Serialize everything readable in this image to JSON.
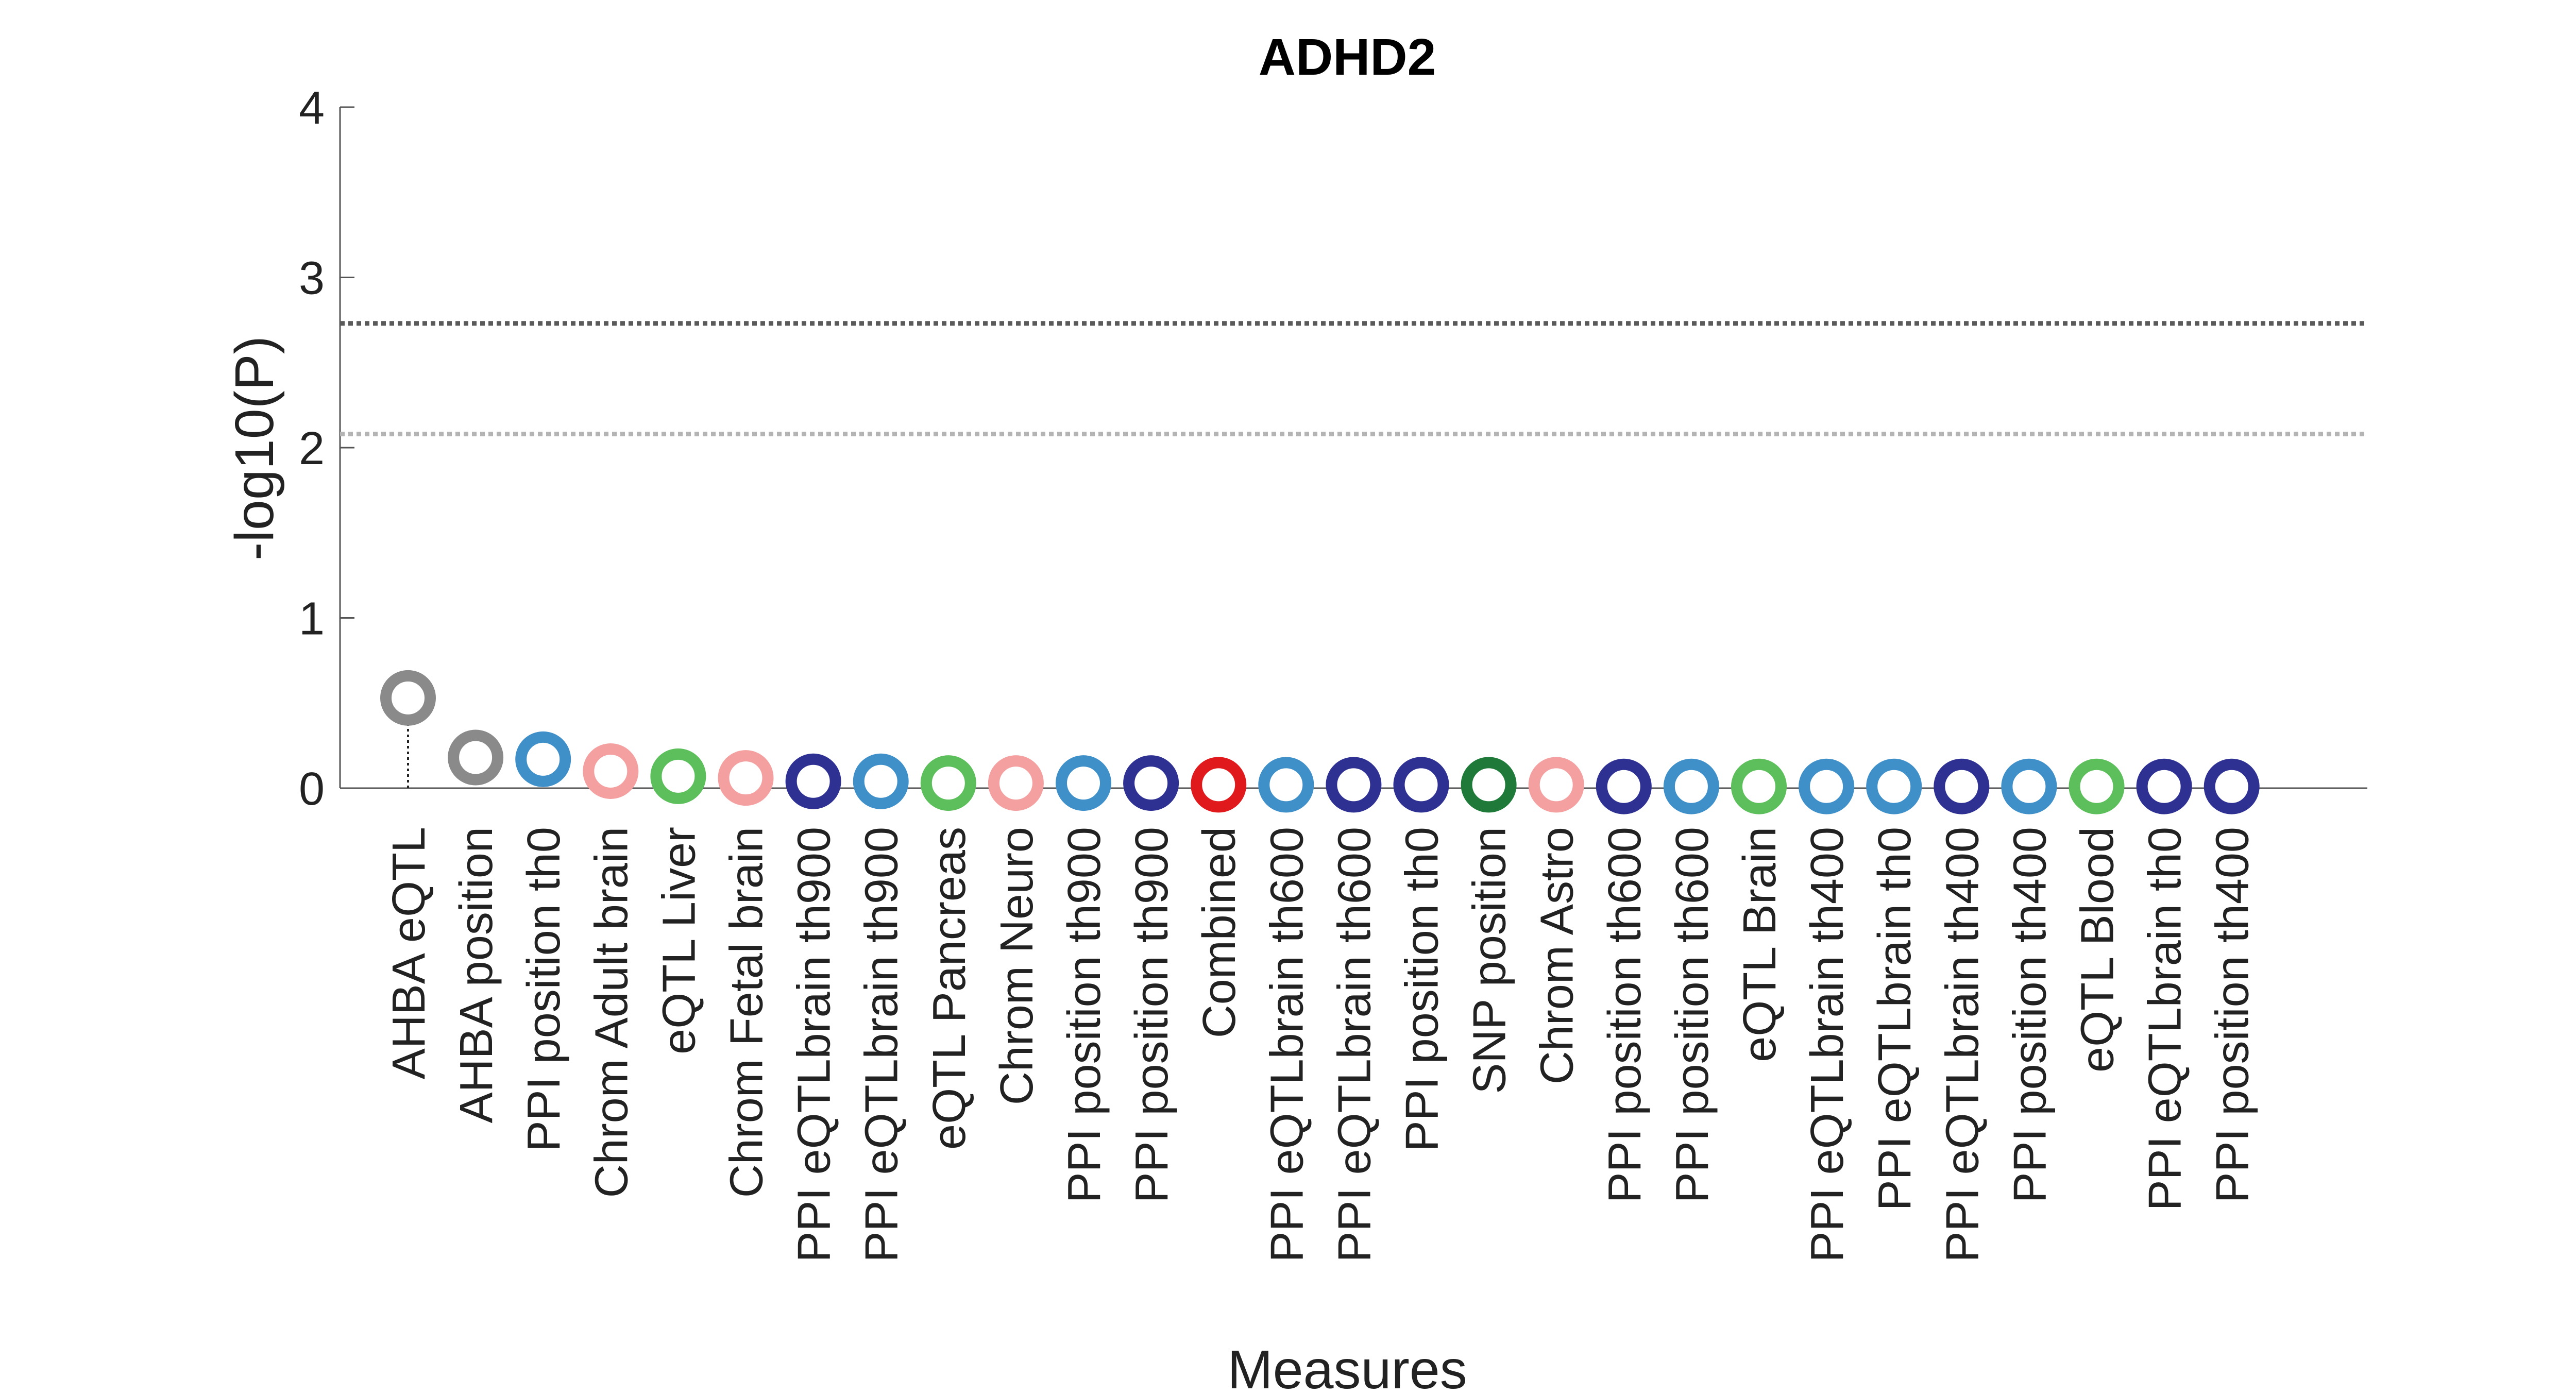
{
  "chart_data": {
    "type": "scatter",
    "title": "ADHD2",
    "xlabel": "Measures",
    "ylabel": "-log10(P)",
    "ylim": [
      0,
      4
    ],
    "yticks": [
      0,
      1,
      2,
      3,
      4
    ],
    "grid": false,
    "reference_lines": [
      {
        "y": 2.73,
        "color": "#5a5a5a",
        "style": "dotted"
      },
      {
        "y": 2.08,
        "color": "#b4b4b4",
        "style": "dotted"
      }
    ],
    "categories": [
      "AHBA eQTL",
      "AHBA position",
      "PPI position th0",
      "Chrom Adult brain",
      "eQTL Liver",
      "Chrom Fetal brain",
      "PPI eQTLbrain th900",
      "PPI eQTLbrain th900",
      "eQTL Pancreas",
      "Chrom Neuro",
      "PPI position th900",
      "PPI position th900",
      "Combined",
      "PPI eQTLbrain th600",
      "PPI eQTLbrain th600",
      "PPI position th0",
      "SNP position",
      "Chrom Astro",
      "PPI position th600",
      "PPI position th600",
      "eQTL Brain",
      "PPI eQTLbrain th400",
      "PPI eQTLbrain th0",
      "PPI eQTLbrain th400",
      "PPI position th400",
      "eQTL Blood",
      "PPI eQTLbrain th0",
      "PPI position th400"
    ],
    "values": [
      0.53,
      0.18,
      0.17,
      0.1,
      0.07,
      0.06,
      0.04,
      0.04,
      0.03,
      0.03,
      0.03,
      0.03,
      0.02,
      0.02,
      0.02,
      0.02,
      0.02,
      0.02,
      0.01,
      0.01,
      0.01,
      0.01,
      0.01,
      0.01,
      0.01,
      0.01,
      0.01,
      0.01
    ],
    "colors": [
      "#8a8a8a",
      "#8a8a8a",
      "#3f8fc9",
      "#f4a0a0",
      "#5cbf5c",
      "#f4a0a0",
      "#2e3192",
      "#3f8fc9",
      "#5cbf5c",
      "#f4a0a0",
      "#3f8fc9",
      "#2e3192",
      "#e0191c",
      "#3f8fc9",
      "#2e3192",
      "#2e3192",
      "#1f7a3a",
      "#f4a0a0",
      "#2e3192",
      "#3f8fc9",
      "#5cbf5c",
      "#3f8fc9",
      "#3f8fc9",
      "#2e3192",
      "#3f8fc9",
      "#5cbf5c",
      "#2e3192",
      "#2e3192"
    ],
    "stem_threshold": 0.5
  }
}
